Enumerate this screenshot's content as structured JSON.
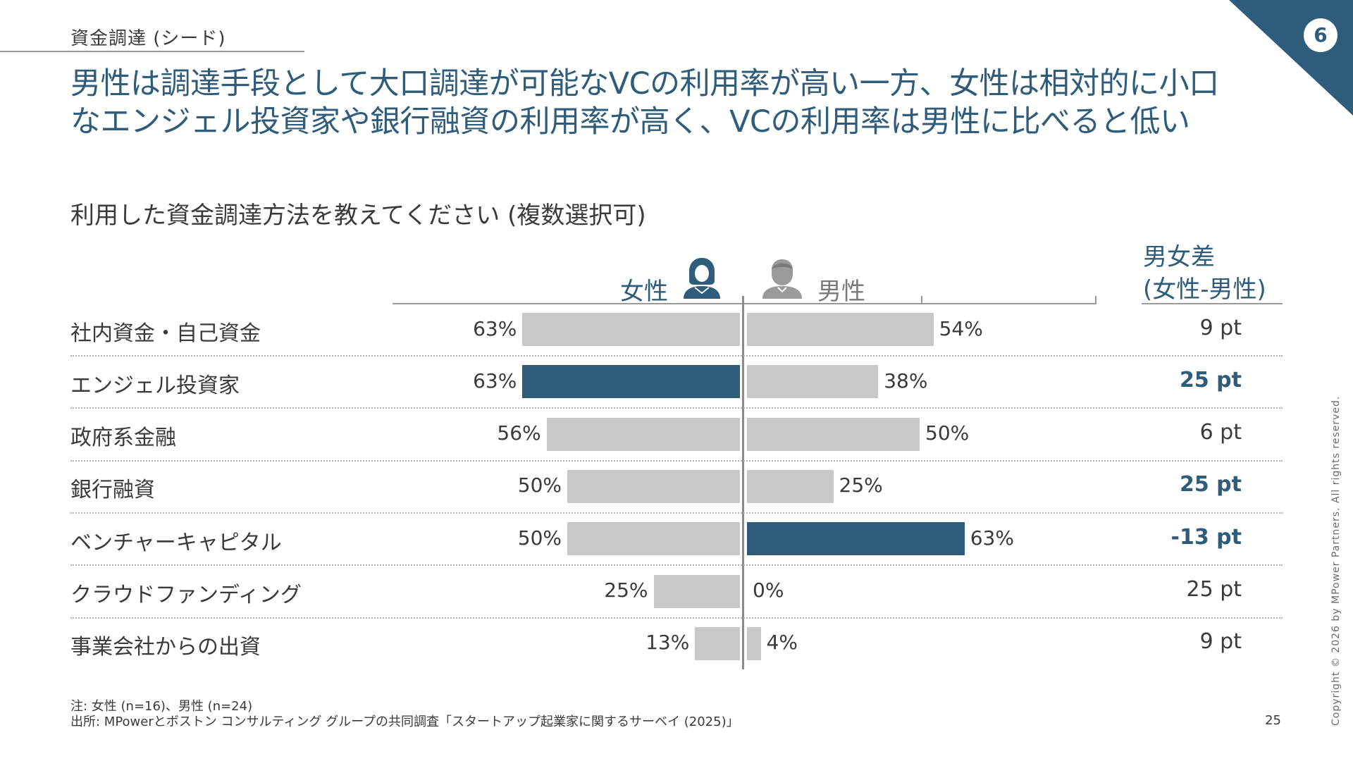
{
  "section": "資金調達 (シード)",
  "page_badge": "6",
  "headline_line1": "男性は調達手段として大口調達が可能なVCの利用率が高い一方、女性は相対的に小口",
  "headline_line2": "なエンジェル投資家や銀行融資の利用率が高く、VCの利用率は男性に比べると低い",
  "question": "利用した資金調達方法を教えてください (複数選択可)",
  "legend": {
    "female": "女性",
    "male": "男性"
  },
  "diff_header_line1": "男女差",
  "diff_header_line2": "(女性-男性)",
  "colors": {
    "accent": "#2e5c7a",
    "bar_gray": "#c8c8c8",
    "text": "#3a3a3a"
  },
  "icons": {
    "female": "female-user-icon",
    "male": "male-user-icon"
  },
  "chart_data": {
    "type": "bar",
    "orientation": "horizontal-butterfly",
    "categories": [
      "社内資金・自己資金",
      "エンジェル投資家",
      "政府系金融",
      "銀行融資",
      "ベンチャーキャピタル",
      "クラウドファンディング",
      "事業会社からの出資"
    ],
    "series": [
      {
        "name": "女性",
        "values": [
          63,
          63,
          56,
          50,
          50,
          25,
          13
        ],
        "labels": [
          "63%",
          "63%",
          "56%",
          "50%",
          "50%",
          "25%",
          "13%"
        ]
      },
      {
        "name": "男性",
        "values": [
          54,
          38,
          50,
          25,
          63,
          0,
          4
        ],
        "labels": [
          "54%",
          "38%",
          "50%",
          "25%",
          "63%",
          "0%",
          "4%"
        ]
      }
    ],
    "differences": [
      "9 pt",
      "25 pt",
      "6 pt",
      "25 pt",
      "-13 pt",
      "25 pt",
      "9 pt"
    ],
    "highlighted_differences": [
      false,
      true,
      false,
      true,
      true,
      false,
      false
    ],
    "highlight": {
      "female_index": 1,
      "male_index": 4
    }
  },
  "note": "注: 女性 (n=16)、男性 (n=24)",
  "source": "出所: MPowerとボストン コンサルティング グループの共同調査「スタートアップ起業家に関するサーベイ (2025)」",
  "page_number": "25",
  "copyright": "Copyright © 2026 by MPower Partners. All rights reserved."
}
